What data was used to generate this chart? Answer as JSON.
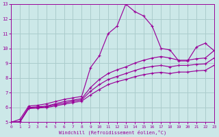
{
  "xlabel": "Windchill (Refroidissement éolien,°C)",
  "background_color": "#cce8e8",
  "grid_color": "#aacccc",
  "line_color": "#990099",
  "xlim": [
    0,
    23
  ],
  "ylim": [
    5,
    13
  ],
  "xticks": [
    0,
    1,
    2,
    3,
    4,
    5,
    6,
    7,
    8,
    9,
    10,
    11,
    12,
    13,
    14,
    15,
    16,
    17,
    18,
    19,
    20,
    21,
    22,
    23
  ],
  "yticks": [
    5,
    6,
    7,
    8,
    9,
    10,
    11,
    12,
    13
  ],
  "series": [
    {
      "x": [
        0,
        1,
        2,
        3,
        4,
        5,
        6,
        7,
        8,
        9,
        10,
        11,
        12,
        13,
        14,
        15,
        16,
        17,
        18,
        19,
        20,
        21,
        22,
        23
      ],
      "y": [
        5.0,
        5.2,
        6.1,
        6.15,
        6.25,
        6.4,
        6.55,
        6.65,
        6.75,
        8.7,
        9.5,
        11.0,
        11.5,
        13.0,
        12.5,
        12.2,
        11.5,
        10.0,
        9.9,
        9.15,
        9.15,
        10.1,
        10.35,
        9.85
      ]
    },
    {
      "x": [
        0,
        1,
        2,
        3,
        4,
        5,
        6,
        7,
        8,
        9,
        10,
        11,
        12,
        13,
        14,
        15,
        16,
        17,
        18,
        19,
        20,
        21,
        22,
        23
      ],
      "y": [
        5.0,
        5.05,
        6.0,
        6.05,
        6.1,
        6.25,
        6.4,
        6.5,
        6.6,
        7.35,
        7.9,
        8.3,
        8.55,
        8.75,
        9.0,
        9.2,
        9.35,
        9.45,
        9.35,
        9.2,
        9.2,
        9.3,
        9.35,
        9.85
      ]
    },
    {
      "x": [
        0,
        1,
        2,
        3,
        4,
        5,
        6,
        7,
        8,
        9,
        10,
        11,
        12,
        13,
        14,
        15,
        16,
        17,
        18,
        19,
        20,
        21,
        22,
        23
      ],
      "y": [
        5.0,
        5.03,
        5.97,
        6.0,
        6.05,
        6.18,
        6.3,
        6.42,
        6.52,
        7.1,
        7.55,
        7.9,
        8.1,
        8.3,
        8.5,
        8.68,
        8.78,
        8.85,
        8.75,
        8.85,
        8.85,
        8.92,
        8.95,
        9.35
      ]
    },
    {
      "x": [
        0,
        1,
        2,
        3,
        4,
        5,
        6,
        7,
        8,
        9,
        10,
        11,
        12,
        13,
        14,
        15,
        16,
        17,
        18,
        19,
        20,
        21,
        22,
        23
      ],
      "y": [
        5.0,
        5.0,
        5.93,
        5.96,
        6.0,
        6.1,
        6.22,
        6.33,
        6.43,
        6.85,
        7.22,
        7.55,
        7.75,
        7.9,
        8.08,
        8.22,
        8.32,
        8.38,
        8.3,
        8.4,
        8.4,
        8.48,
        8.52,
        8.85
      ]
    }
  ]
}
